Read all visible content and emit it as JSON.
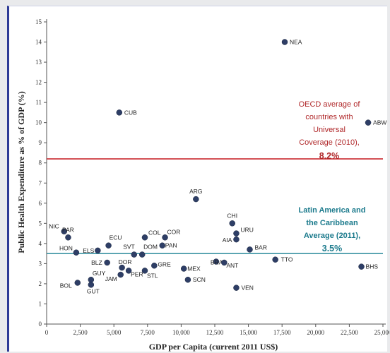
{
  "chart_data": {
    "type": "scatter",
    "xlabel": "GDP per Capita (current 2011 US$)",
    "ylabel": "Public Health Expenditure as % of GDP (%)",
    "xlim": [
      0,
      25000
    ],
    "ylim": [
      0,
      15
    ],
    "x_ticks": [
      "0",
      "2,500",
      "5,000",
      "7,500",
      "10,000",
      "12,500",
      "15,000",
      "17,500",
      "20,000",
      "22,500",
      "25,000"
    ],
    "y_ticks": [
      "0",
      "1",
      "2",
      "3",
      "4",
      "5",
      "6",
      "7",
      "8",
      "9",
      "10",
      "11",
      "12",
      "13",
      "14",
      "15"
    ],
    "grid": false,
    "marker_color": "#2e3e66",
    "points": [
      {
        "label": "NEA",
        "x": 17700,
        "y": 14.0
      },
      {
        "label": "CUB",
        "x": 5400,
        "y": 10.5
      },
      {
        "label": "ABW",
        "x": 23900,
        "y": 10.0
      },
      {
        "label": "ARG",
        "x": 11100,
        "y": 6.2
      },
      {
        "label": "CHI",
        "x": 13800,
        "y": 5.0
      },
      {
        "label": "URU",
        "x": 14100,
        "y": 4.5
      },
      {
        "label": "AIA",
        "x": 14100,
        "y": 4.2
      },
      {
        "label": "BAR",
        "x": 15100,
        "y": 3.7
      },
      {
        "label": "NIC",
        "x": 1300,
        "y": 4.6
      },
      {
        "label": "PAR",
        "x": 1600,
        "y": 4.3
      },
      {
        "label": "COL",
        "x": 7300,
        "y": 4.3
      },
      {
        "label": "COR",
        "x": 8800,
        "y": 4.3
      },
      {
        "label": "ECU",
        "x": 4600,
        "y": 3.9
      },
      {
        "label": "PAN",
        "x": 8600,
        "y": 3.9
      },
      {
        "label": "HON",
        "x": 2200,
        "y": 3.55
      },
      {
        "label": "ELS",
        "x": 3800,
        "y": 3.65
      },
      {
        "label": "SVT",
        "x": 6500,
        "y": 3.45
      },
      {
        "label": "DOM",
        "x": 7100,
        "y": 3.45
      },
      {
        "label": "BLZ",
        "x": 4500,
        "y": 3.05
      },
      {
        "label": "DOR",
        "x": 5600,
        "y": 2.8
      },
      {
        "label": "GRE",
        "x": 8000,
        "y": 2.9
      },
      {
        "label": "PER",
        "x": 6100,
        "y": 2.65
      },
      {
        "label": "STL",
        "x": 7300,
        "y": 2.65
      },
      {
        "label": "JAM",
        "x": 5500,
        "y": 2.45
      },
      {
        "label": "MEX",
        "x": 10200,
        "y": 2.75
      },
      {
        "label": "BRA",
        "x": 12600,
        "y": 3.1
      },
      {
        "label": "ANT",
        "x": 13200,
        "y": 3.05
      },
      {
        "label": "TTO",
        "x": 17000,
        "y": 3.2
      },
      {
        "label": "BHS",
        "x": 23400,
        "y": 2.85
      },
      {
        "label": "SCN",
        "x": 10500,
        "y": 2.2
      },
      {
        "label": "GUY",
        "x": 3300,
        "y": 2.2
      },
      {
        "label": "BOL",
        "x": 2300,
        "y": 2.05
      },
      {
        "label": "GUT",
        "x": 3300,
        "y": 1.95
      },
      {
        "label": "VEN",
        "x": 14100,
        "y": 1.8
      }
    ],
    "reference_lines": [
      {
        "name": "OECD",
        "y": 8.2,
        "color": "#c8242a",
        "annotation": [
          "OECD average of",
          "countries with",
          "Universal",
          "Coverage (2010),",
          "8.2%"
        ]
      },
      {
        "name": "LAC",
        "y": 3.5,
        "color": "#2a8a9b",
        "annotation": [
          "Latin America and",
          "the Caribbean",
          "Average (2011),",
          "3.5%"
        ]
      }
    ]
  }
}
